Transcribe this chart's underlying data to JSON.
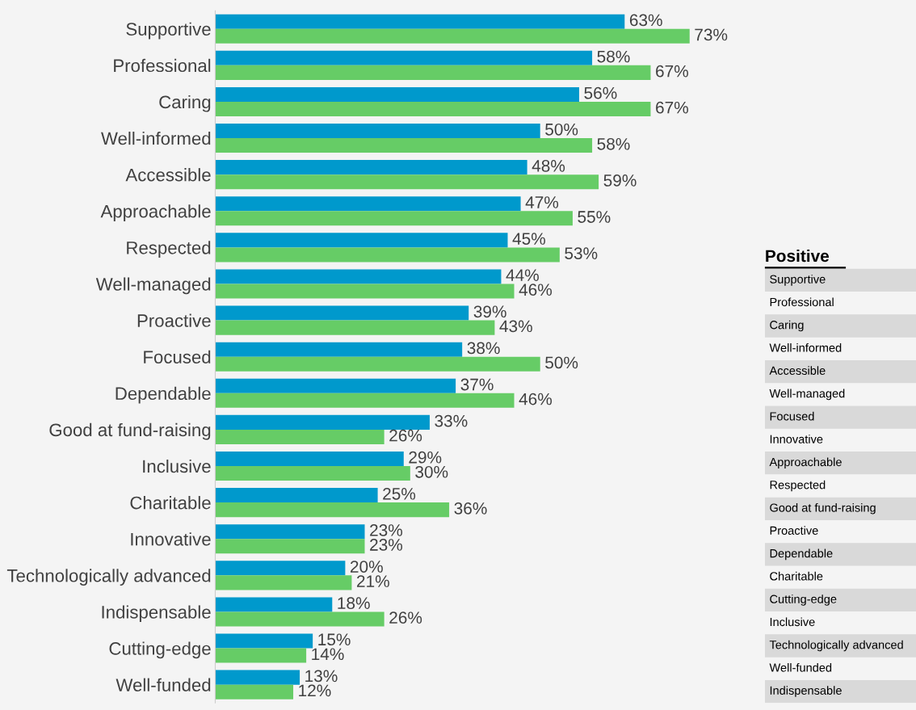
{
  "chart_data": [
    {
      "type": "bar",
      "orientation": "horizontal",
      "tick_labels": "y",
      "grid": false,
      "categories": [
        "Supportive",
        "Professional",
        "Caring",
        "Well-informed",
        "Accessible",
        "Approachable",
        "Respected",
        "Well-managed",
        "Proactive",
        "Focused",
        "Dependable",
        "Good at fund-raising",
        "Inclusive",
        "Charitable",
        "Innovative",
        "Technologically advanced",
        "Indispensable",
        "Cutting-edge",
        "Well-funded"
      ],
      "series": [
        {
          "color": "#0099cc",
          "values": [
            63,
            58,
            56,
            50,
            48,
            47,
            45,
            44,
            39,
            38,
            37,
            33,
            29,
            25,
            23,
            20,
            18,
            15,
            13
          ],
          "value_labels": [
            "63%",
            "58%",
            "56%",
            "50%",
            "48%",
            "47%",
            "45%",
            "44%",
            "39%",
            "38%",
            "37%",
            "33%",
            "29%",
            "25%",
            "23%",
            "20%",
            "18%",
            "15%",
            "13%"
          ]
        },
        {
          "color": "#66cc66",
          "values": [
            73,
            67,
            67,
            58,
            59,
            55,
            53,
            46,
            43,
            50,
            46,
            26,
            30,
            36,
            23,
            21,
            26,
            14,
            12
          ],
          "value_labels": [
            "73%",
            "67%",
            "67%",
            "58%",
            "59%",
            "55%",
            "53%",
            "46%",
            "43%",
            "50%",
            "46%",
            "26%",
            "30%",
            "36%",
            "23%",
            "21%",
            "26%",
            "14%",
            "12%"
          ]
        }
      ]
    },
    {
      "type": "other",
      "title": "Positive",
      "annotations": [
        "Supportive",
        "Professional",
        "Caring",
        "Well-informed",
        "Accessible",
        "Well-managed",
        "Focused",
        "Innovative",
        "Approachable",
        "Respected",
        "Good at fund-raising",
        "Proactive",
        "Dependable",
        "Charitable",
        "Cutting-edge",
        "Inclusive",
        "Technologically advanced",
        "Well-funded",
        "Indispensable"
      ]
    }
  ]
}
